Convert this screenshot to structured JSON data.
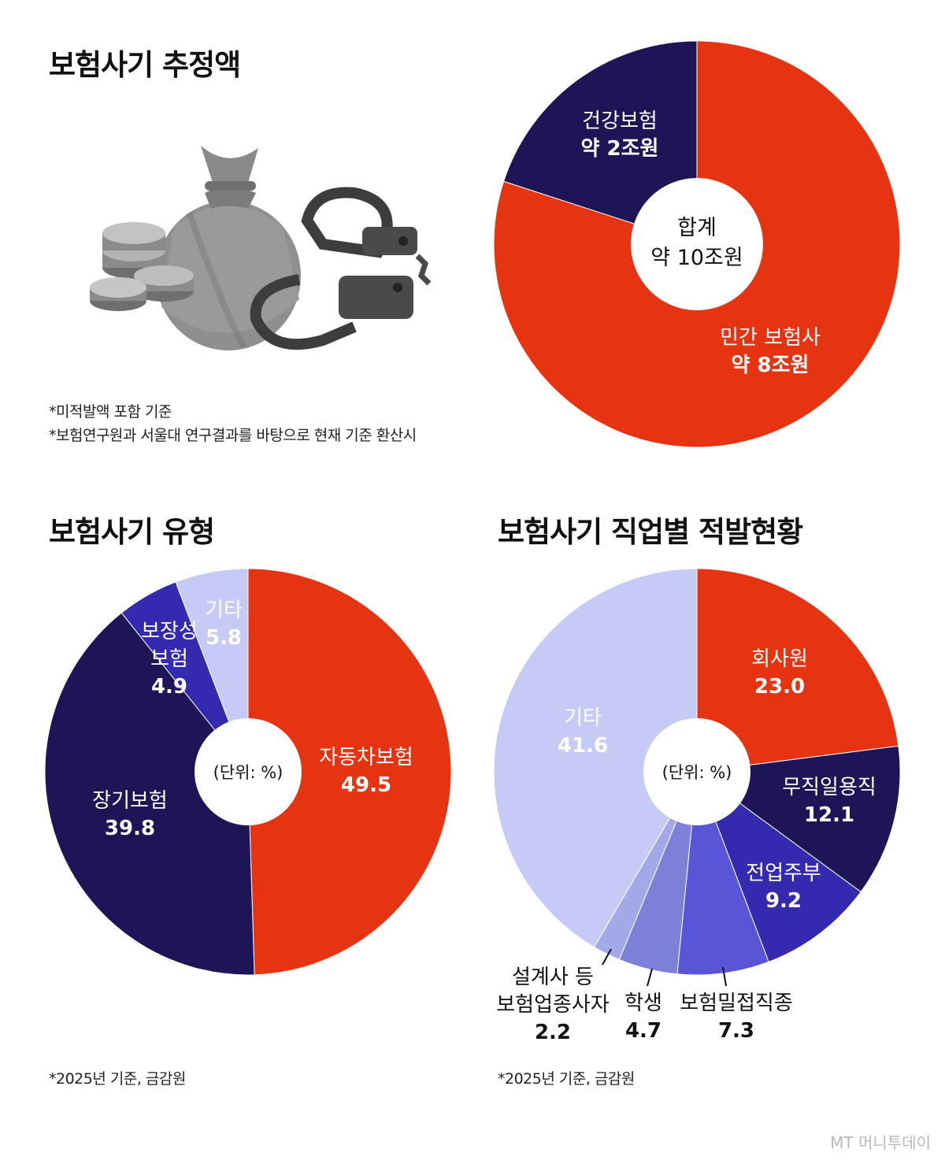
{
  "sections": {
    "estimate": {
      "title": "보험사기 추정액",
      "notes": [
        "*미적발액 포함 기준",
        "*보험연구원과 서울대 연구결과를 바탕으로 현재 기준 환산시"
      ]
    },
    "types": {
      "title": "보험사기 유형",
      "note": "*2025년 기준, 금감원"
    },
    "occupations": {
      "title": "보험사기 직업별 적발현황",
      "note": "*2025년 기준, 금감원"
    }
  },
  "watermark": "MT 머니투데이",
  "icons": [
    "money-bag-icon",
    "coins-icon",
    "handcuffs-icon"
  ],
  "chart_data": [
    {
      "type": "pie",
      "name": "estimate",
      "center_label": [
        "합계",
        "약 10조원"
      ],
      "categories": [
        "민간 보험사",
        "건강보험"
      ],
      "values": [
        8,
        2
      ],
      "value_labels": [
        "약 8조원",
        "약 2조원"
      ],
      "unit": "조원",
      "colors": [
        "#e63312",
        "#1d1556"
      ]
    },
    {
      "type": "pie",
      "name": "types",
      "center_label": [
        "(단위: %)"
      ],
      "categories": [
        "자동차보험",
        "장기보험",
        "보장성 보험",
        "기타"
      ],
      "values": [
        49.5,
        39.8,
        4.9,
        5.8
      ],
      "unit": "%",
      "colors": [
        "#e63312",
        "#1d1556",
        "#342ab0",
        "#c5cbf5"
      ],
      "label_colors": [
        "#ffffff",
        "#ffffff",
        "#ffffff",
        "#ffffff"
      ]
    },
    {
      "type": "pie",
      "name": "occupations",
      "center_label": [
        "(단위: %)"
      ],
      "categories": [
        "회사원",
        "무직일용직",
        "전업주부",
        "보험밀접직종",
        "학생",
        "설계사 등 보험업종사자",
        "기타"
      ],
      "values": [
        23.0,
        12.1,
        9.2,
        7.3,
        4.7,
        2.2,
        41.6
      ],
      "unit": "%",
      "colors": [
        "#e63312",
        "#1d1556",
        "#342ab0",
        "#5856d6",
        "#7c80d7",
        "#a3a8e8",
        "#c5cbf5"
      ]
    }
  ]
}
